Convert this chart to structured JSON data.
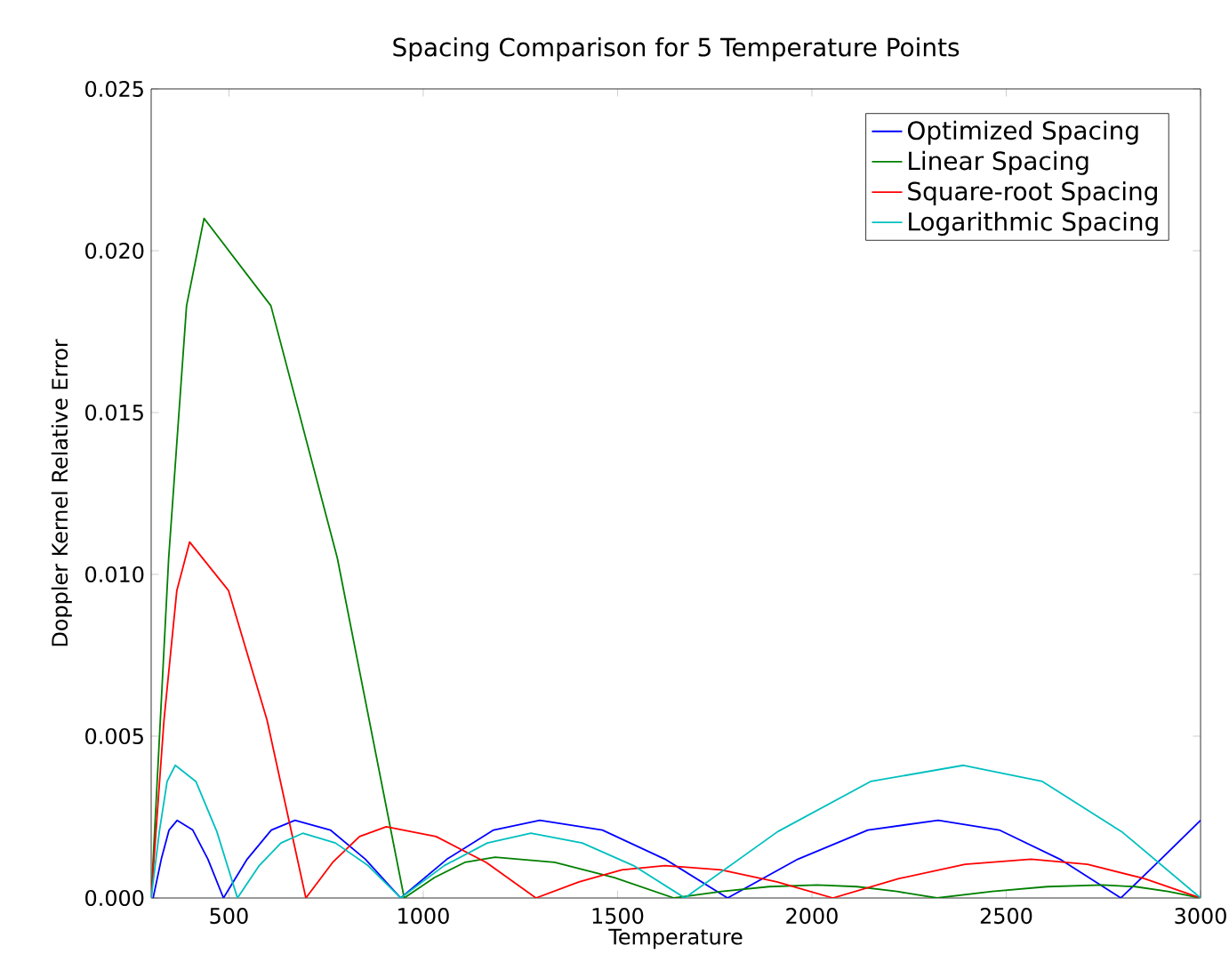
{
  "chart_data": {
    "type": "line",
    "title": "Spacing Comparison for 5 Temperature Points",
    "xlabel": "Temperature",
    "ylabel": "Doppler Kernel Relative Error",
    "xlim": [
      300,
      3000
    ],
    "ylim": [
      0,
      0.025
    ],
    "xticks": [
      500,
      1000,
      1500,
      2000,
      2500,
      3000
    ],
    "yticks": [
      {
        "value": 0,
        "label": "0.000"
      },
      {
        "value": 0.005,
        "label": "0.005"
      },
      {
        "value": 0.01,
        "label": "0.010"
      },
      {
        "value": 0.015,
        "label": "0.015"
      },
      {
        "value": 0.02,
        "label": "0.020"
      },
      {
        "value": 0.025,
        "label": "0.025"
      }
    ],
    "legend": "top right",
    "series": [
      {
        "name": "Optimized Spacing",
        "color": "#0000ff",
        "x": [
          305,
          326,
          346,
          367,
          407,
          446,
          486,
          547,
          609,
          670,
          761,
          851,
          942,
          1061,
          1181,
          1300,
          1461,
          1622,
          1783,
          1964,
          2144,
          2325,
          2482,
          2638,
          2795,
          2898,
          3000
        ],
        "values": [
          0,
          0.0012,
          0.0021,
          0.0024,
          0.0021,
          0.0012,
          0,
          0.0012,
          0.0021,
          0.0024,
          0.0021,
          0.0012,
          0,
          0.0012,
          0.0021,
          0.0024,
          0.0021,
          0.0012,
          0,
          0.0012,
          0.0021,
          0.0024,
          0.0021,
          0.0012,
          0,
          0.0012,
          0.0024
        ]
      },
      {
        "name": "Linear Spacing",
        "color": "#008000",
        "x": [
          300,
          345,
          391,
          436,
          608,
          779,
          951,
          1029,
          1107,
          1185,
          1338,
          1492,
          1645,
          1768,
          1890,
          2013,
          2116,
          2219,
          2322,
          2464,
          2606,
          2748,
          2832,
          2916,
          3000
        ],
        "values": [
          0,
          0.0105,
          0.0183,
          0.021,
          0.0183,
          0.0105,
          0,
          0.00063,
          0.0011,
          0.00126,
          0.0011,
          0.00063,
          0,
          0.0002,
          0.00035,
          0.0004,
          0.00035,
          0.0002,
          0,
          0.0002,
          0.00035,
          0.0004,
          0.00035,
          0.0002,
          0
        ]
      },
      {
        "name": "Square-root Spacing",
        "color": "#ff0000",
        "x": [
          300,
          333,
          366,
          399,
          499,
          598,
          698,
          767,
          836,
          905,
          1033,
          1162,
          1290,
          1401,
          1511,
          1622,
          1766,
          1910,
          2054,
          2224,
          2394,
          2564,
          2709,
          2855,
          3000
        ],
        "values": [
          0,
          0.0055,
          0.0095,
          0.011,
          0.0095,
          0.0055,
          0,
          0.0011,
          0.0019,
          0.0022,
          0.0019,
          0.0011,
          0,
          0.0005,
          0.00087,
          0.001,
          0.00087,
          0.0005,
          0,
          0.0006,
          0.00104,
          0.0012,
          0.00104,
          0.0006,
          0
        ]
      },
      {
        "name": "Logarithmic Spacing",
        "color": "#00bfbf",
        "x": [
          300,
          321,
          341,
          362,
          415,
          469,
          522,
          578,
          634,
          690,
          774,
          858,
          942,
          1054,
          1165,
          1277,
          1409,
          1541,
          1673,
          1912,
          2151,
          2390,
          2593,
          2797,
          3000
        ],
        "values": [
          0,
          0.00205,
          0.0036,
          0.0041,
          0.0036,
          0.00205,
          0,
          0.001,
          0.0017,
          0.002,
          0.0017,
          0.001,
          0,
          0.001,
          0.0017,
          0.002,
          0.0017,
          0.001,
          0,
          0.00205,
          0.0036,
          0.0041,
          0.0036,
          0.00205,
          0
        ]
      }
    ]
  }
}
